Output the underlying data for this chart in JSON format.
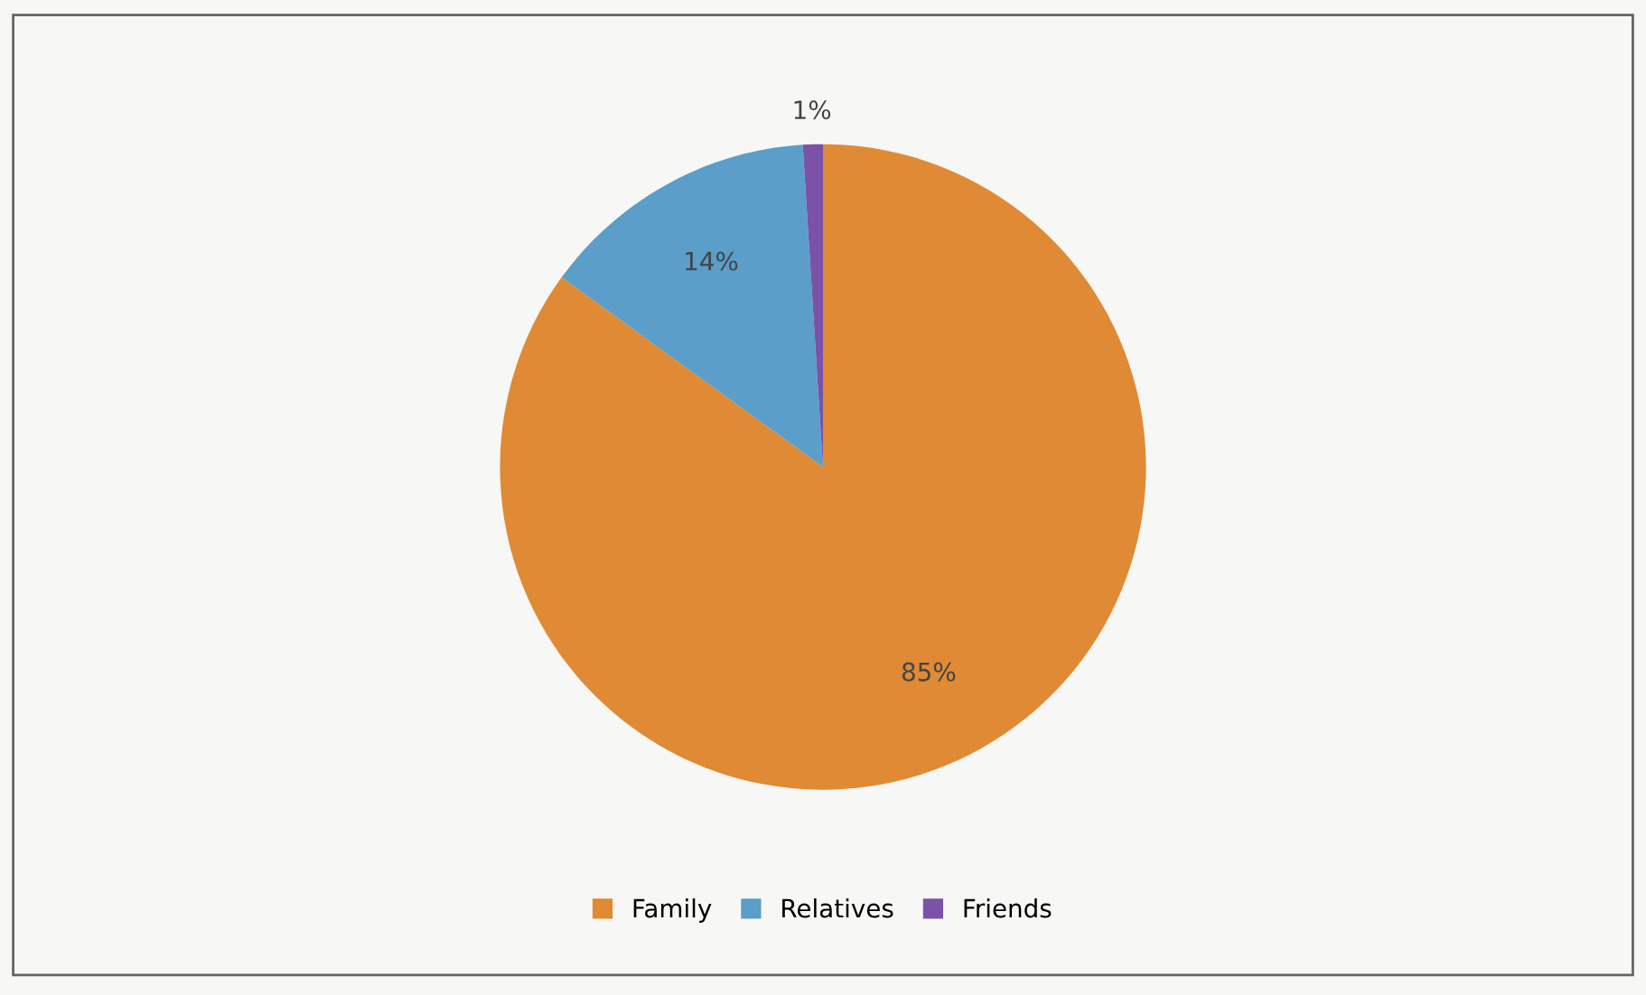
{
  "chart_data": {
    "type": "pie",
    "categories": [
      "Family",
      "Relatives",
      "Friends"
    ],
    "values": [
      85,
      14,
      1
    ],
    "colors": [
      "#e08a35",
      "#5a9ec9",
      "#7b52a8"
    ],
    "value_labels": [
      "85%",
      "14%",
      "1%"
    ],
    "legend": "bottom"
  }
}
